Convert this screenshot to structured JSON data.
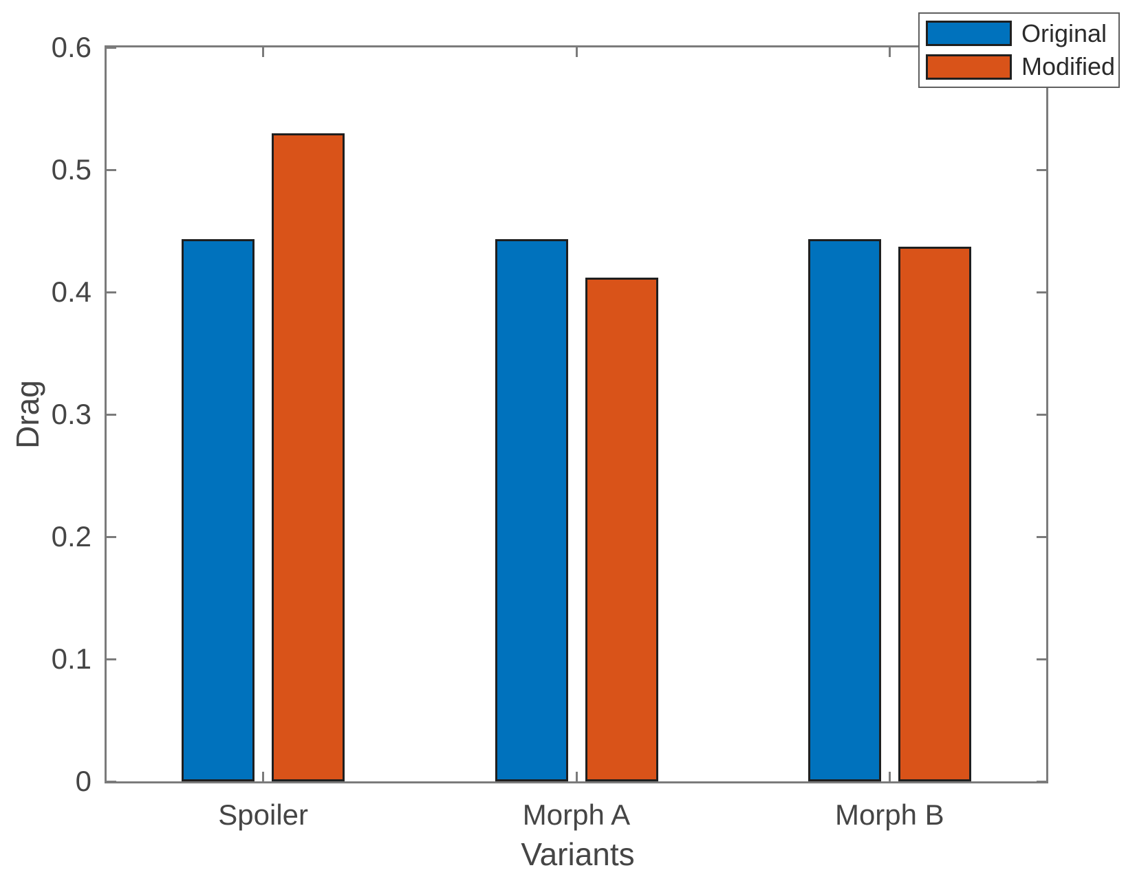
{
  "chart_data": {
    "type": "bar",
    "title": "",
    "categories": [
      "Spoiler",
      "Morph A",
      "Morph B"
    ],
    "series": [
      {
        "name": "Original",
        "color": "#0072BD",
        "values": [
          0.443,
          0.443,
          0.443
        ]
      },
      {
        "name": "Modified",
        "color": "#D95319",
        "values": [
          0.53,
          0.412,
          0.437
        ]
      }
    ],
    "xlabel": "Variants",
    "ylabel": "Drag",
    "ylim": [
      0,
      0.6
    ],
    "yticks": [
      0,
      0.1,
      0.2,
      0.3,
      0.4,
      0.5,
      0.6
    ],
    "ytick_labels": [
      "0",
      "0.1",
      "0.2",
      "0.3",
      "0.4",
      "0.5",
      "0.6"
    ],
    "grid": false,
    "legend": {
      "position": "top-right",
      "entries": [
        "Original",
        "Modified"
      ]
    }
  }
}
